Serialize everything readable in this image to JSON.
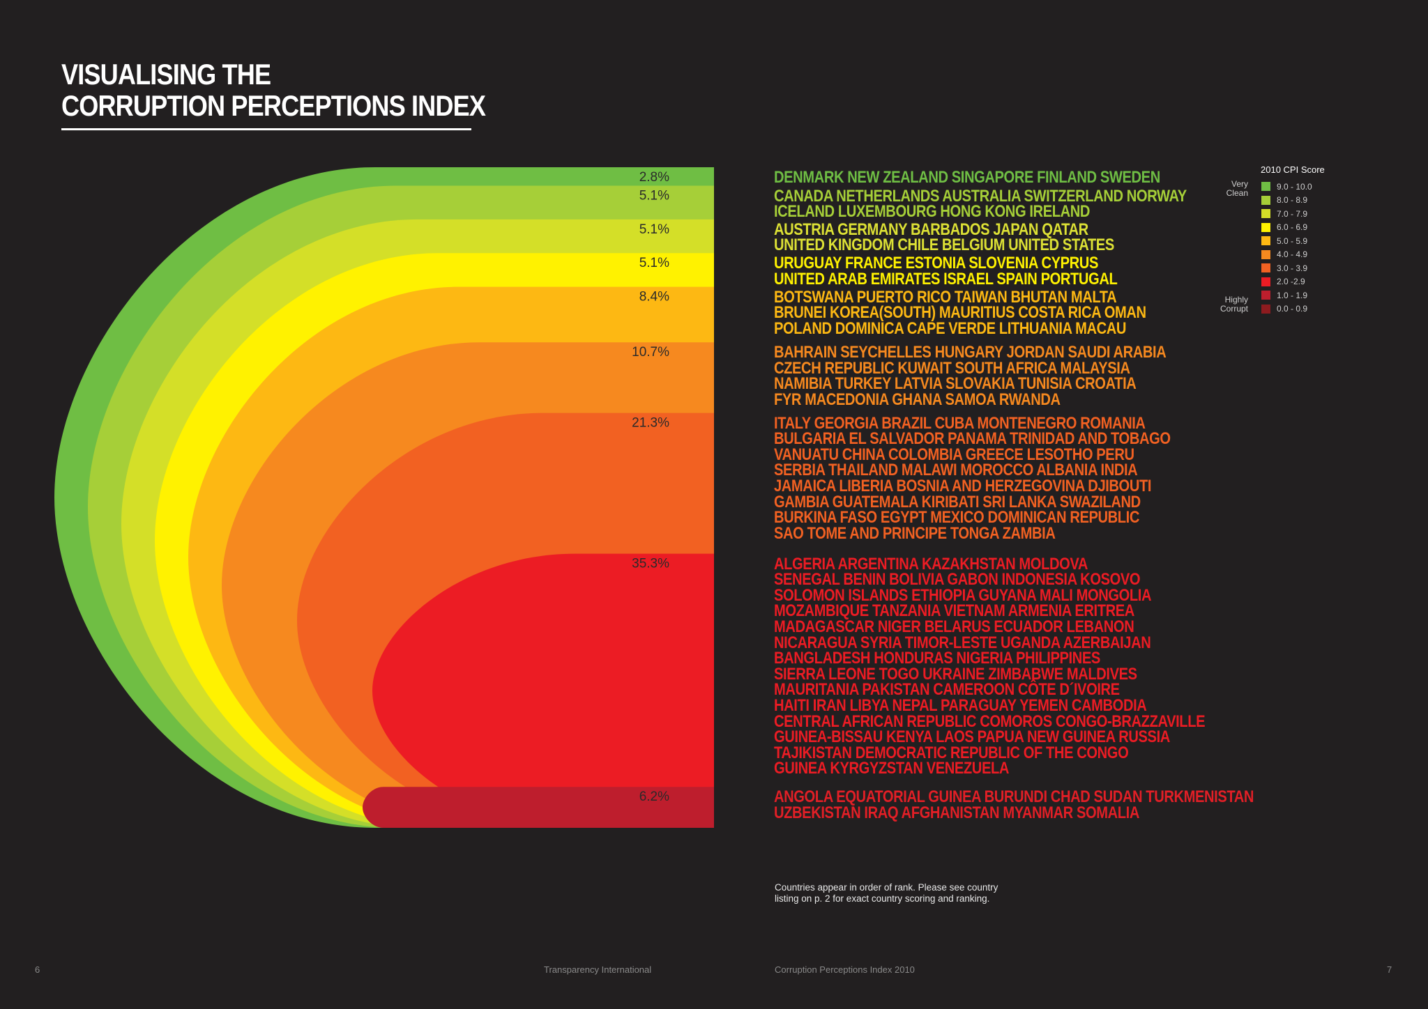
{
  "title_lines": [
    "VISUALISING THE",
    "CORRUPTION PERCEPTIONS INDEX"
  ],
  "chart_data": {
    "type": "area",
    "title": "VISUALISING THE CORRUPTION PERCEPTIONS INDEX",
    "legend_title": "2010 CPI Score",
    "legend_placement": "top-right",
    "bands": [
      {
        "range": "9.0 - 10.0",
        "percent": 2.8,
        "label": "2.8%",
        "color": "#6fbe44",
        "countries": [
          "DENMARK NEW ZEALAND SINGAPORE FINLAND SWEDEN"
        ]
      },
      {
        "range": "8.0 - 8.9",
        "percent": 5.1,
        "label": "5.1%",
        "color": "#a6cf38",
        "countries": [
          "CANADA NETHERLANDS AUSTRALIA SWITZERLAND NORWAY",
          "ICELAND LUXEMBOURG HONG KONG IRELAND"
        ]
      },
      {
        "range": "7.0 - 7.9",
        "percent": 5.1,
        "label": "5.1%",
        "color": "#d4df28",
        "countries": [
          "AUSTRIA GERMANY BARBADOS JAPAN QATAR",
          "UNITED KINGDOM CHILE BELGIUM UNITED STATES"
        ]
      },
      {
        "range": "6.0 - 6.9",
        "percent": 5.1,
        "label": "5.1%",
        "color": "#fff200",
        "countries": [
          "URUGUAY FRANCE ESTONIA SLOVENIA CYPRUS",
          "UNITED ARAB EMIRATES ISRAEL SPAIN PORTUGAL"
        ]
      },
      {
        "range": "5.0 - 5.9",
        "percent": 8.4,
        "label": "8.4%",
        "color": "#fdb813",
        "countries": [
          "BOTSWANA PUERTO RICO TAIWAN BHUTAN MALTA",
          "BRUNEI KOREA(SOUTH) MAURITIUS COSTA RICA OMAN",
          "POLAND DOMINICA CAPE VERDE LITHUANIA MACAU"
        ]
      },
      {
        "range": "4.0 - 4.9",
        "percent": 10.7,
        "label": "10.7%",
        "color": "#f6891f",
        "countries": [
          "BAHRAIN SEYCHELLES HUNGARY JORDAN SAUDI ARABIA",
          "CZECH REPUBLIC KUWAIT SOUTH AFRICA MALAYSIA",
          "NAMIBIA TURKEY LATVIA SLOVAKIA TUNISIA CROATIA",
          "FYR MACEDONIA GHANA SAMOA RWANDA"
        ]
      },
      {
        "range": "3.0 - 3.9",
        "percent": 21.3,
        "label": "21.3%",
        "color": "#f26122",
        "countries": [
          "ITALY GEORGIA BRAZIL CUBA MONTENEGRO ROMANIA",
          "BULGARIA EL SALVADOR PANAMA TRINIDAD AND TOBAGO",
          "VANUATU CHINA COLOMBIA GREECE LESOTHO PERU",
          "SERBIA THAILAND MALAWI MOROCCO ALBANIA INDIA",
          "JAMAICA LIBERIA BOSNIA AND HERZEGOVINA DJIBOUTI",
          "GAMBIA GUATEMALA KIRIBATI SRI LANKA SWAZILAND",
          "BURKINA FASO EGYPT MEXICO DOMINICAN REPUBLIC",
          "SAO TOME AND PRINCIPE TONGA ZAMBIA"
        ]
      },
      {
        "range": "2.0 -2.9",
        "percent": 35.3,
        "label": "35.3%",
        "color": "#ec1c24",
        "countries": [
          "ALGERIA ARGENTINA KAZAKHSTAN MOLDOVA",
          "SENEGAL BENIN BOLIVIA GABON INDONESIA KOSOVO",
          "SOLOMON ISLANDS ETHIOPIA GUYANA MALI MONGOLIA",
          "MOZAMBIQUE TANZANIA VIETNAM ARMENIA ERITREA",
          "MADAGASCAR NIGER BELARUS ECUADOR LEBANON",
          "NICARAGUA SYRIA TIMOR-LESTE UGANDA AZERBAIJAN",
          "BANGLADESH HONDURAS NIGERIA PHILIPPINES",
          "SIERRA LEONE TOGO UKRAINE ZIMBABWE MALDIVES",
          "MAURITANIA PAKISTAN CAMEROON CÔTE D´IVOIRE",
          "HAITI IRAN LIBYA NEPAL PARAGUAY YEMEN CAMBODIA",
          "CENTRAL AFRICAN REPUBLIC COMOROS CONGO-BRAZZAVILLE",
          "GUINEA-BISSAU KENYA LAOS PAPUA NEW GUINEA RUSSIA",
          "TAJIKISTAN DEMOCRATIC REPUBLIC OF THE CONGO",
          "GUINEA KYRGYZSTAN VENEZUELA"
        ]
      },
      {
        "range": "1.0 - 1.9",
        "percent": 6.2,
        "label": "6.2%",
        "color": "#be1e2d",
        "countries": [
          "ANGOLA EQUATORIAL GUINEA BURUNDI CHAD SUDAN TURKMENISTAN",
          "UZBEKISTAN IRAQ  AFGHANISTAN MYANMAR SOMALIA"
        ]
      }
    ],
    "legend_extra": {
      "range": "0.0 - 0.9",
      "color": "#8e1b1f"
    },
    "legend_top_label": [
      "Very",
      "Clean"
    ],
    "legend_bottom_label": [
      "Highly",
      "Corrupt"
    ]
  },
  "footnote_lines": [
    "Countries appear in order of rank. Please see country",
    "listing on p. 2 for exact country scoring and ranking."
  ],
  "footer": {
    "page_left": "6",
    "publisher": "Transparency International",
    "publication": "Corruption Perceptions Index 2010",
    "page_right": "7"
  }
}
